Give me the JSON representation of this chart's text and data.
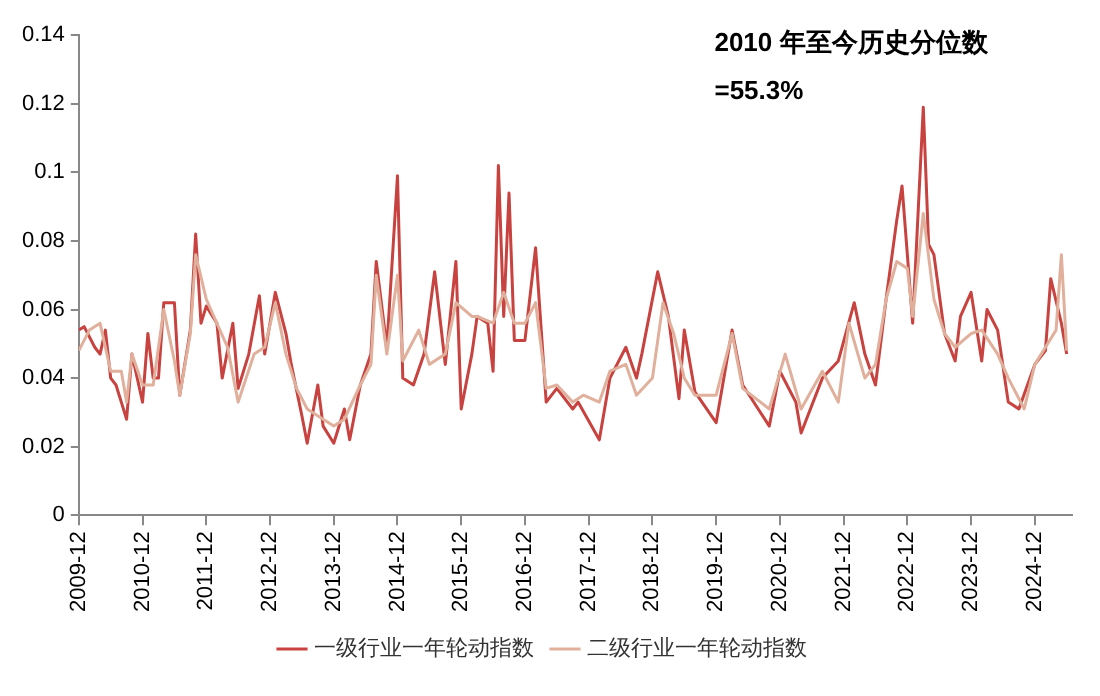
{
  "chart_data": {
    "type": "line",
    "annotations": [
      "2010 年至今历史分位数",
      "=55.3%"
    ],
    "xlim": [
      "2009-12",
      "2025-07"
    ],
    "xticks": [
      "2009-12",
      "2010-12",
      "2011-12",
      "2012-12",
      "2013-12",
      "2014-12",
      "2015-12",
      "2016-12",
      "2017-12",
      "2018-12",
      "2019-12",
      "2020-12",
      "2021-12",
      "2022-12",
      "2023-12",
      "2024-12"
    ],
    "ylim": [
      0,
      0.14
    ],
    "yticks": [
      0,
      0.02,
      0.04,
      0.06,
      0.08,
      {
        "value": 0.1,
        "label": "0.1"
      },
      0.12,
      0.14
    ],
    "grid": false,
    "legend": "bottom",
    "marker": "none",
    "line_style": "solid",
    "series": [
      {
        "name": "一级行业一年轮动指数",
        "color": "#c8423f",
        "x": [
          "2009-12",
          "2010-01",
          "2010-03",
          "2010-04",
          "2010-05",
          "2010-06",
          "2010-07",
          "2010-08",
          "2010-09",
          "2010-10",
          "2010-12",
          "2011-01",
          "2011-02",
          "2011-03",
          "2011-04",
          "2011-06",
          "2011-07",
          "2011-09",
          "2011-10",
          "2011-11",
          "2011-12",
          "2012-02",
          "2012-03",
          "2012-05",
          "2012-06",
          "2012-08",
          "2012-10",
          "2012-11",
          "2013-01",
          "2013-03",
          "2013-04",
          "2013-06",
          "2013-07",
          "2013-09",
          "2013-10",
          "2013-12",
          "2014-02",
          "2014-03",
          "2014-05",
          "2014-07",
          "2014-08",
          "2014-10",
          "2014-12",
          "2015-01",
          "2015-03",
          "2015-05",
          "2015-07",
          "2015-09",
          "2015-11",
          "2015-12",
          "2016-02",
          "2016-03",
          "2016-05",
          "2016-06",
          "2016-07",
          "2016-08",
          "2016-09",
          "2016-10",
          "2016-12",
          "2017-02",
          "2017-04",
          "2017-06",
          "2017-09",
          "2017-10",
          "2018-02",
          "2018-04",
          "2018-07",
          "2018-09",
          "2018-10",
          "2019-01",
          "2019-03",
          "2019-05",
          "2019-06",
          "2019-08",
          "2019-12",
          "2020-03",
          "2020-05",
          "2020-10",
          "2020-12",
          "2021-03",
          "2021-04",
          "2021-08",
          "2021-11",
          "2022-02",
          "2022-04",
          "2022-06",
          "2022-08",
          "2022-10",
          "2022-11",
          "2023-01",
          "2023-03",
          "2023-04",
          "2023-05",
          "2023-07",
          "2023-09",
          "2023-10",
          "2023-12",
          "2024-02",
          "2024-03",
          "2024-05",
          "2024-07",
          "2024-09",
          "2024-12",
          "2025-02",
          "2025-03",
          "2025-05",
          "2025-06"
        ],
        "values": [
          0.054,
          0.055,
          0.049,
          0.047,
          0.054,
          0.04,
          0.038,
          0.033,
          0.028,
          0.047,
          0.033,
          0.053,
          0.04,
          0.04,
          0.062,
          0.062,
          0.035,
          0.054,
          0.082,
          0.056,
          0.061,
          0.056,
          0.04,
          0.056,
          0.037,
          0.047,
          0.064,
          0.047,
          0.065,
          0.053,
          0.044,
          0.029,
          0.021,
          0.038,
          0.026,
          0.021,
          0.031,
          0.022,
          0.038,
          0.047,
          0.074,
          0.049,
          0.099,
          0.04,
          0.038,
          0.047,
          0.071,
          0.044,
          0.074,
          0.031,
          0.047,
          0.058,
          0.056,
          0.042,
          0.102,
          0.058,
          0.094,
          0.051,
          0.051,
          0.078,
          0.033,
          0.037,
          0.031,
          0.033,
          0.022,
          0.04,
          0.049,
          0.04,
          0.047,
          0.071,
          0.058,
          0.034,
          0.054,
          0.036,
          0.027,
          0.054,
          0.038,
          0.026,
          0.042,
          0.033,
          0.024,
          0.04,
          0.045,
          0.062,
          0.047,
          0.038,
          0.063,
          0.086,
          0.096,
          0.056,
          0.119,
          0.079,
          0.076,
          0.053,
          0.045,
          0.058,
          0.065,
          0.045,
          0.06,
          0.054,
          0.033,
          0.031,
          0.044,
          0.048,
          0.069,
          0.056,
          0.047
        ]
      },
      {
        "name": "二级行业一年轮动指数",
        "color": "#e0b09c",
        "x": [
          "2009-12",
          "2010-02",
          "2010-04",
          "2010-06",
          "2010-08",
          "2010-09",
          "2010-10",
          "2010-12",
          "2011-02",
          "2011-04",
          "2011-06",
          "2011-07",
          "2011-09",
          "2011-10",
          "2011-12",
          "2012-02",
          "2012-04",
          "2012-06",
          "2012-09",
          "2012-11",
          "2013-01",
          "2013-03",
          "2013-05",
          "2013-07",
          "2013-10",
          "2013-12",
          "2014-02",
          "2014-05",
          "2014-07",
          "2014-08",
          "2014-10",
          "2014-12",
          "2015-01",
          "2015-04",
          "2015-06",
          "2015-09",
          "2015-11",
          "2016-02",
          "2016-03",
          "2016-06",
          "2016-08",
          "2016-10",
          "2016-12",
          "2017-02",
          "2017-04",
          "2017-06",
          "2017-09",
          "2017-11",
          "2018-02",
          "2018-04",
          "2018-07",
          "2018-09",
          "2018-12",
          "2019-02",
          "2019-04",
          "2019-06",
          "2019-08",
          "2019-12",
          "2020-03",
          "2020-05",
          "2020-10",
          "2021-01",
          "2021-04",
          "2021-08",
          "2021-11",
          "2022-01",
          "2022-04",
          "2022-06",
          "2022-08",
          "2022-10",
          "2022-12",
          "2023-01",
          "2023-03",
          "2023-05",
          "2023-07",
          "2023-09",
          "2023-12",
          "2024-02",
          "2024-05",
          "2024-07",
          "2024-10",
          "2024-12",
          "2025-02",
          "2025-04",
          "2025-05",
          "2025-06"
        ],
        "values": [
          0.048,
          0.054,
          0.056,
          0.042,
          0.042,
          0.033,
          0.047,
          0.038,
          0.038,
          0.06,
          0.045,
          0.035,
          0.053,
          0.076,
          0.063,
          0.056,
          0.049,
          0.033,
          0.047,
          0.049,
          0.062,
          0.047,
          0.037,
          0.031,
          0.028,
          0.026,
          0.028,
          0.038,
          0.044,
          0.07,
          0.047,
          0.07,
          0.045,
          0.054,
          0.044,
          0.047,
          0.062,
          0.058,
          0.058,
          0.056,
          0.065,
          0.056,
          0.056,
          0.062,
          0.037,
          0.038,
          0.033,
          0.035,
          0.033,
          0.042,
          0.044,
          0.035,
          0.04,
          0.062,
          0.053,
          0.04,
          0.035,
          0.035,
          0.053,
          0.037,
          0.031,
          0.047,
          0.031,
          0.042,
          0.033,
          0.056,
          0.04,
          0.044,
          0.063,
          0.074,
          0.072,
          0.058,
          0.088,
          0.063,
          0.053,
          0.049,
          0.053,
          0.054,
          0.047,
          0.04,
          0.031,
          0.044,
          0.049,
          0.054,
          0.076,
          0.048
        ]
      }
    ]
  }
}
